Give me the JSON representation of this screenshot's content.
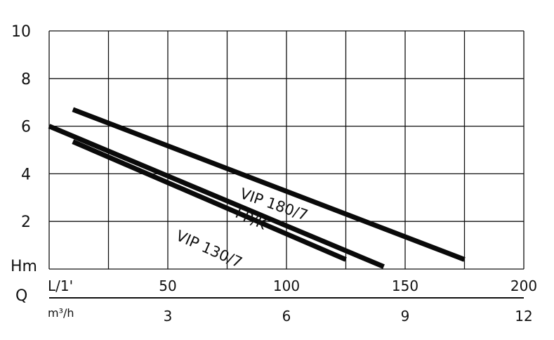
{
  "chart_data": {
    "type": "line",
    "y_axis": {
      "label": "Hm",
      "range": [
        0,
        10
      ],
      "ticks": [
        "2",
        "4",
        "6",
        "8",
        "10"
      ],
      "tick_values": [
        2,
        4,
        6,
        8,
        10
      ]
    },
    "x_axis_primary": {
      "label": "Q",
      "unit_label": "L/1'",
      "range": [
        0,
        200
      ],
      "ticks": [
        "50",
        "100",
        "150",
        "200"
      ],
      "tick_values": [
        50,
        100,
        150,
        200
      ]
    },
    "x_axis_secondary": {
      "unit_label": "m³/h",
      "range": [
        0,
        12
      ],
      "ticks": [
        "3",
        "6",
        "9",
        "12"
      ],
      "tick_values": [
        3,
        6,
        9,
        12
      ]
    },
    "grid": true,
    "series": [
      {
        "name": "VIP 180/7",
        "points": [
          [
            10,
            6.7
          ],
          [
            175,
            0.4
          ]
        ],
        "label_at": [
          80,
          3.0
        ],
        "label_angle": 19
      },
      {
        "name": "FP/K",
        "points": [
          [
            0,
            6.0
          ],
          [
            141,
            0.1
          ]
        ],
        "label_at": [
          78,
          2.2
        ],
        "label_angle": 24
      },
      {
        "name": "VIP 130/7",
        "points": [
          [
            10,
            5.35
          ],
          [
            125,
            0.4
          ]
        ],
        "label_at": [
          53,
          1.25
        ],
        "label_angle": 24
      }
    ]
  }
}
